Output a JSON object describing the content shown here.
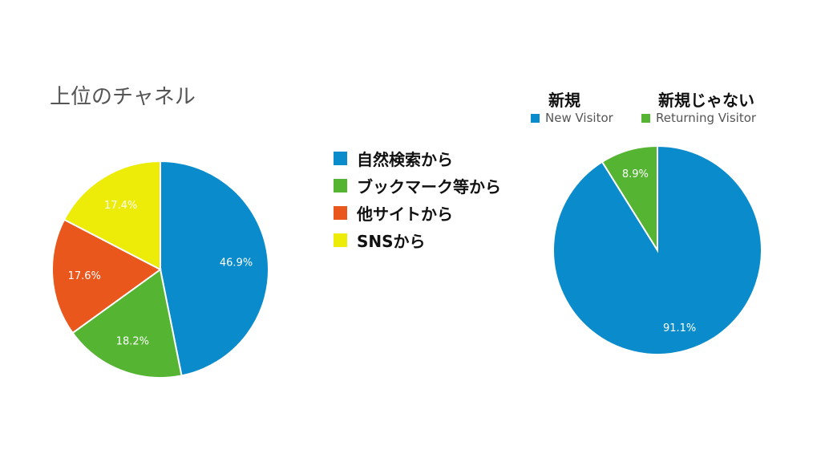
{
  "chart_data": [
    {
      "type": "pie",
      "title": "上位のチャネル",
      "categories": [
        "自然検索から",
        "ブックマーク等から",
        "他サイトから",
        "SNSから"
      ],
      "values": [
        46.9,
        18.2,
        17.6,
        17.4
      ],
      "value_labels": [
        "46.9%",
        "18.2%",
        "17.6%",
        "17.4%"
      ],
      "colors": [
        "#0a8bcb",
        "#55b533",
        "#ea571d",
        "#ecec08"
      ]
    },
    {
      "type": "pie",
      "categories": [
        "New Visitor",
        "Returning Visitor"
      ],
      "category_headings": [
        "新規",
        "新規じゃない"
      ],
      "values": [
        91.1,
        8.9
      ],
      "value_labels": [
        "91.1%",
        "8.9%"
      ],
      "colors": [
        "#0a8bcb",
        "#55b533"
      ]
    }
  ]
}
